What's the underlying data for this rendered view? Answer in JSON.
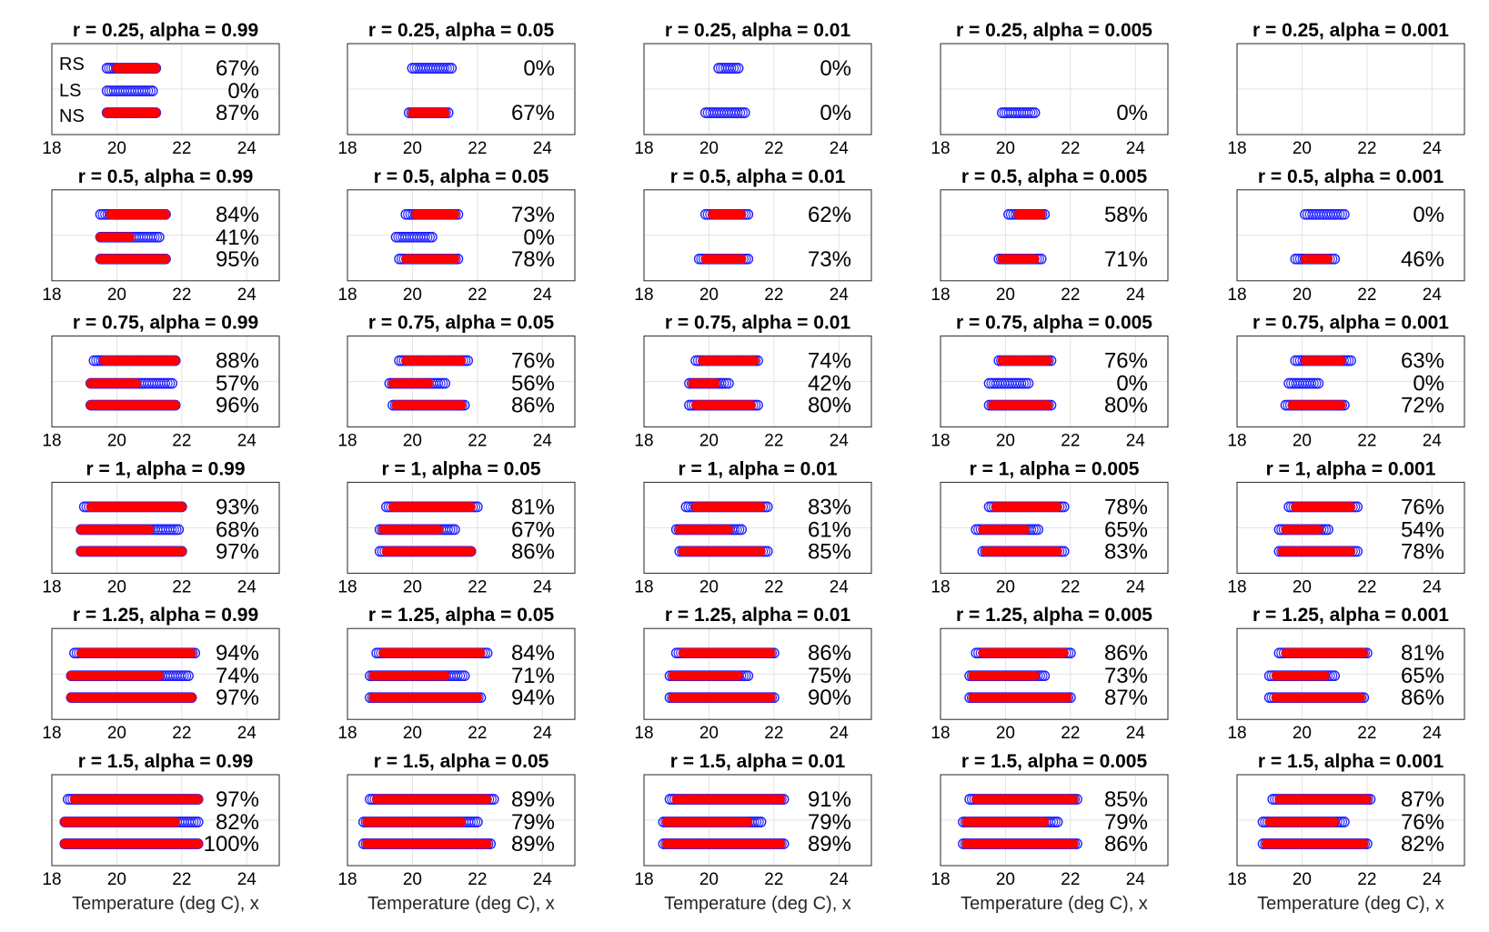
{
  "chart_data": {
    "type": "scatter",
    "rows_labels": [
      "RS",
      "LS",
      "NS"
    ],
    "xticks": [
      18,
      20,
      22,
      24
    ],
    "xlim": [
      18,
      25
    ],
    "xlabel": "Temperature (deg C), x",
    "colors": {
      "blue": "#1f1fff",
      "red": "#ff0000",
      "grid": "#e3e3e3"
    },
    "panels": [
      {
        "title": "r = 0.25, alpha = 0.99",
        "show_row_labels": true,
        "rows": [
          {
            "blue": [
              19.7,
              21.2
            ],
            "red": [
              20.0,
              21.2
            ],
            "pct": "67%"
          },
          {
            "blue": [
              19.7,
              21.1
            ],
            "red": null,
            "pct": "0%"
          },
          {
            "blue": [
              19.7,
              21.2
            ],
            "red": [
              19.7,
              21.2
            ],
            "pct": "87%"
          }
        ]
      },
      {
        "title": "r = 0.25, alpha = 0.05",
        "rows": [
          {
            "blue": [
              20.0,
              21.2
            ],
            "red": null,
            "pct": "0%"
          },
          null,
          {
            "blue": [
              19.9,
              21.1
            ],
            "red": [
              20.0,
              21.0
            ],
            "pct": "67%"
          }
        ]
      },
      {
        "title": "r = 0.25, alpha = 0.01",
        "rows": [
          {
            "blue": [
              20.3,
              20.9
            ],
            "red": null,
            "pct": "0%"
          },
          null,
          {
            "blue": [
              19.9,
              21.1
            ],
            "red": null,
            "pct": "0%"
          }
        ]
      },
      {
        "title": "r = 0.25, alpha = 0.005",
        "rows": [
          null,
          null,
          {
            "blue": [
              19.9,
              20.9
            ],
            "red": null,
            "pct": "0%"
          }
        ]
      },
      {
        "title": "r = 0.25, alpha = 0.001",
        "rows": [
          null,
          null,
          null
        ]
      },
      {
        "title": "r = 0.5, alpha = 0.99",
        "rows": [
          {
            "blue": [
              19.5,
              21.5
            ],
            "red": [
              19.8,
              21.5
            ],
            "pct": "84%"
          },
          {
            "blue": [
              19.5,
              21.3
            ],
            "red": [
              19.5,
              20.4
            ],
            "pct": "41%"
          },
          {
            "blue": [
              19.5,
              21.5
            ],
            "red": [
              19.5,
              21.5
            ],
            "pct": "95%"
          }
        ]
      },
      {
        "title": "r = 0.5, alpha = 0.05",
        "rows": [
          {
            "blue": [
              19.8,
              21.4
            ],
            "red": [
              20.1,
              21.3
            ],
            "pct": "73%"
          },
          {
            "blue": [
              19.5,
              20.6
            ],
            "red": null,
            "pct": "0%"
          },
          {
            "blue": [
              19.6,
              21.4
            ],
            "red": [
              19.8,
              21.3
            ],
            "pct": "78%"
          }
        ]
      },
      {
        "title": "r = 0.5, alpha = 0.01",
        "rows": [
          {
            "blue": [
              19.9,
              21.2
            ],
            "red": [
              20.1,
              21.0
            ],
            "pct": "62%"
          },
          null,
          {
            "blue": [
              19.7,
              21.2
            ],
            "red": [
              19.9,
              21.0
            ],
            "pct": "73%"
          }
        ]
      },
      {
        "title": "r = 0.5, alpha = 0.005",
        "rows": [
          {
            "blue": [
              20.1,
              21.2
            ],
            "red": [
              20.4,
              21.1
            ],
            "pct": "58%"
          },
          null,
          {
            "blue": [
              19.8,
              21.1
            ],
            "red": [
              19.9,
              20.9
            ],
            "pct": "71%"
          }
        ]
      },
      {
        "title": "r = 0.5, alpha = 0.001",
        "rows": [
          {
            "blue": [
              20.1,
              21.3
            ],
            "red": null,
            "pct": "0%"
          },
          null,
          {
            "blue": [
              19.8,
              21.0
            ],
            "red": [
              20.1,
              20.8
            ],
            "pct": "46%"
          }
        ]
      },
      {
        "title": "r = 0.75, alpha = 0.99",
        "rows": [
          {
            "blue": [
              19.3,
              21.8
            ],
            "red": [
              19.6,
              21.8
            ],
            "pct": "88%"
          },
          {
            "blue": [
              19.2,
              21.7
            ],
            "red": [
              19.2,
              20.6
            ],
            "pct": "57%"
          },
          {
            "blue": [
              19.2,
              21.8
            ],
            "red": [
              19.2,
              21.8
            ],
            "pct": "96%"
          }
        ]
      },
      {
        "title": "r = 0.75, alpha = 0.05",
        "rows": [
          {
            "blue": [
              19.6,
              21.7
            ],
            "red": [
              19.8,
              21.5
            ],
            "pct": "76%"
          },
          {
            "blue": [
              19.3,
              21.0
            ],
            "red": [
              19.4,
              20.5
            ],
            "pct": "56%"
          },
          {
            "blue": [
              19.4,
              21.6
            ],
            "red": [
              19.5,
              21.5
            ],
            "pct": "86%"
          }
        ]
      },
      {
        "title": "r = 0.75, alpha = 0.01",
        "rows": [
          {
            "blue": [
              19.6,
              21.5
            ],
            "red": [
              19.8,
              21.4
            ],
            "pct": "74%"
          },
          {
            "blue": [
              19.4,
              20.6
            ],
            "red": [
              19.5,
              20.2
            ],
            "pct": "42%"
          },
          {
            "blue": [
              19.4,
              21.5
            ],
            "red": [
              19.6,
              21.3
            ],
            "pct": "80%"
          }
        ]
      },
      {
        "title": "r = 0.75, alpha = 0.005",
        "rows": [
          {
            "blue": [
              19.8,
              21.4
            ],
            "red": [
              19.9,
              21.3
            ],
            "pct": "76%"
          },
          {
            "blue": [
              19.5,
              20.7
            ],
            "red": null,
            "pct": "0%"
          },
          {
            "blue": [
              19.5,
              21.4
            ],
            "red": [
              19.6,
              21.3
            ],
            "pct": "80%"
          }
        ]
      },
      {
        "title": "r = 0.75, alpha = 0.001",
        "rows": [
          {
            "blue": [
              19.8,
              21.5
            ],
            "red": [
              20.1,
              21.2
            ],
            "pct": "63%"
          },
          {
            "blue": [
              19.6,
              20.5
            ],
            "red": null,
            "pct": "0%"
          },
          {
            "blue": [
              19.5,
              21.3
            ],
            "red": [
              19.7,
              21.2
            ],
            "pct": "72%"
          }
        ]
      },
      {
        "title": "r = 1, alpha = 0.99",
        "rows": [
          {
            "blue": [
              19.0,
              22.0
            ],
            "red": [
              19.2,
              22.0
            ],
            "pct": "93%"
          },
          {
            "blue": [
              18.9,
              21.9
            ],
            "red": [
              18.9,
              21.0
            ],
            "pct": "68%"
          },
          {
            "blue": [
              18.9,
              22.0
            ],
            "red": [
              18.9,
              22.0
            ],
            "pct": "97%"
          }
        ]
      },
      {
        "title": "r = 1, alpha = 0.05",
        "rows": [
          {
            "blue": [
              19.2,
              22.0
            ],
            "red": [
              19.4,
              21.8
            ],
            "pct": "81%"
          },
          {
            "blue": [
              19.0,
              21.3
            ],
            "red": [
              19.1,
              20.8
            ],
            "pct": "67%"
          },
          {
            "blue": [
              19.0,
              21.8
            ],
            "red": [
              19.2,
              21.8
            ],
            "pct": "86%"
          }
        ]
      },
      {
        "title": "r = 1, alpha = 0.01",
        "rows": [
          {
            "blue": [
              19.3,
              21.8
            ],
            "red": [
              19.6,
              21.6
            ],
            "pct": "83%"
          },
          {
            "blue": [
              19.0,
              21.0
            ],
            "red": [
              19.1,
              20.6
            ],
            "pct": "61%"
          },
          {
            "blue": [
              19.1,
              21.8
            ],
            "red": [
              19.2,
              21.6
            ],
            "pct": "85%"
          }
        ]
      },
      {
        "title": "r = 1, alpha = 0.005",
        "rows": [
          {
            "blue": [
              19.5,
              21.8
            ],
            "red": [
              19.7,
              21.6
            ],
            "pct": "78%"
          },
          {
            "blue": [
              19.1,
              21.0
            ],
            "red": [
              19.3,
              20.6
            ],
            "pct": "65%"
          },
          {
            "blue": [
              19.3,
              21.8
            ],
            "red": [
              19.4,
              21.6
            ],
            "pct": "83%"
          }
        ]
      },
      {
        "title": "r = 1, alpha = 0.001",
        "rows": [
          {
            "blue": [
              19.6,
              21.7
            ],
            "red": [
              19.8,
              21.5
            ],
            "pct": "76%"
          },
          {
            "blue": [
              19.3,
              20.8
            ],
            "red": [
              19.5,
              20.5
            ],
            "pct": "54%"
          },
          {
            "blue": [
              19.3,
              21.7
            ],
            "red": [
              19.4,
              21.5
            ],
            "pct": "78%"
          }
        ]
      },
      {
        "title": "r = 1.25, alpha = 0.99",
        "rows": [
          {
            "blue": [
              18.7,
              22.4
            ],
            "red": [
              18.9,
              22.3
            ],
            "pct": "94%"
          },
          {
            "blue": [
              18.6,
              22.2
            ],
            "red": [
              18.6,
              21.3
            ],
            "pct": "74%"
          },
          {
            "blue": [
              18.6,
              22.3
            ],
            "red": [
              18.6,
              22.3
            ],
            "pct": "97%"
          }
        ]
      },
      {
        "title": "r = 1.25, alpha = 0.05",
        "rows": [
          {
            "blue": [
              18.9,
              22.3
            ],
            "red": [
              19.1,
              22.1
            ],
            "pct": "84%"
          },
          {
            "blue": [
              18.7,
              21.6
            ],
            "red": [
              18.8,
              21.0
            ],
            "pct": "71%"
          },
          {
            "blue": [
              18.7,
              22.1
            ],
            "red": [
              18.8,
              22.0
            ],
            "pct": "94%"
          }
        ]
      },
      {
        "title": "r = 1.25, alpha = 0.01",
        "rows": [
          {
            "blue": [
              19.0,
              22.0
            ],
            "red": [
              19.2,
              21.9
            ],
            "pct": "86%"
          },
          {
            "blue": [
              18.8,
              21.2
            ],
            "red": [
              18.9,
              20.9
            ],
            "pct": "75%"
          },
          {
            "blue": [
              18.8,
              22.0
            ],
            "red": [
              18.9,
              21.9
            ],
            "pct": "90%"
          }
        ]
      },
      {
        "title": "r = 1.25, alpha = 0.005",
        "rows": [
          {
            "blue": [
              19.1,
              22.0
            ],
            "red": [
              19.3,
              21.8
            ],
            "pct": "86%"
          },
          {
            "blue": [
              18.9,
              21.2
            ],
            "red": [
              19.0,
              20.9
            ],
            "pct": "73%"
          },
          {
            "blue": [
              18.9,
              22.0
            ],
            "red": [
              19.0,
              21.9
            ],
            "pct": "87%"
          }
        ]
      },
      {
        "title": "r = 1.25, alpha = 0.001",
        "rows": [
          {
            "blue": [
              19.3,
              22.0
            ],
            "red": [
              19.5,
              21.9
            ],
            "pct": "81%"
          },
          {
            "blue": [
              19.0,
              21.0
            ],
            "red": [
              19.2,
              20.7
            ],
            "pct": "65%"
          },
          {
            "blue": [
              19.0,
              21.9
            ],
            "red": [
              19.2,
              21.8
            ],
            "pct": "86%"
          }
        ]
      },
      {
        "title": "r = 1.5, alpha = 0.99",
        "rows": [
          {
            "blue": [
              18.5,
              22.5
            ],
            "red": [
              18.7,
              22.5
            ],
            "pct": "97%"
          },
          {
            "blue": [
              18.4,
              22.5
            ],
            "red": [
              18.4,
              21.8
            ],
            "pct": "82%"
          },
          {
            "blue": [
              18.4,
              22.5
            ],
            "red": [
              18.4,
              22.5
            ],
            "pct": "100%"
          }
        ]
      },
      {
        "title": "r = 1.5, alpha = 0.05",
        "rows": [
          {
            "blue": [
              18.7,
              22.5
            ],
            "red": [
              18.9,
              22.3
            ],
            "pct": "89%"
          },
          {
            "blue": [
              18.5,
              22.0
            ],
            "red": [
              18.6,
              21.5
            ],
            "pct": "79%"
          },
          {
            "blue": [
              18.5,
              22.4
            ],
            "red": [
              18.6,
              22.3
            ],
            "pct": "89%"
          }
        ]
      },
      {
        "title": "r = 1.5, alpha = 0.01",
        "rows": [
          {
            "blue": [
              18.8,
              22.3
            ],
            "red": [
              19.0,
              22.2
            ],
            "pct": "91%"
          },
          {
            "blue": [
              18.6,
              21.6
            ],
            "red": [
              18.7,
              21.2
            ],
            "pct": "79%"
          },
          {
            "blue": [
              18.6,
              22.3
            ],
            "red": [
              18.7,
              22.2
            ],
            "pct": "89%"
          }
        ]
      },
      {
        "title": "r = 1.5, alpha = 0.005",
        "rows": [
          {
            "blue": [
              18.9,
              22.2
            ],
            "red": [
              19.1,
              22.1
            ],
            "pct": "85%"
          },
          {
            "blue": [
              18.7,
              21.6
            ],
            "red": [
              18.8,
              21.2
            ],
            "pct": "79%"
          },
          {
            "blue": [
              18.7,
              22.2
            ],
            "red": [
              18.8,
              22.1
            ],
            "pct": "86%"
          }
        ]
      },
      {
        "title": "r = 1.5, alpha = 0.001",
        "rows": [
          {
            "blue": [
              19.1,
              22.1
            ],
            "red": [
              19.3,
              22.0
            ],
            "pct": "87%"
          },
          {
            "blue": [
              18.8,
              21.3
            ],
            "red": [
              19.0,
              21.0
            ],
            "pct": "76%"
          },
          {
            "blue": [
              18.8,
              22.0
            ],
            "red": [
              18.9,
              21.9
            ],
            "pct": "82%"
          }
        ]
      }
    ]
  }
}
